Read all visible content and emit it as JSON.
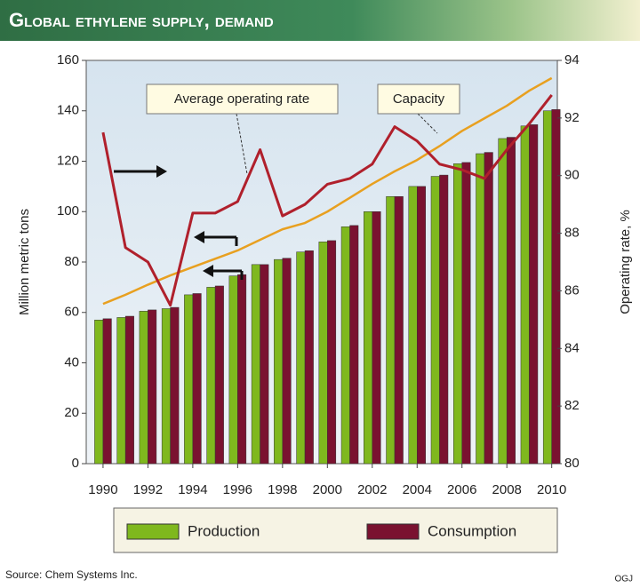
{
  "chart_data": {
    "type": "bar",
    "title": "Global ethylene supply, demand",
    "y_label": "Million metric tons",
    "y2_label": "Operating rate, %",
    "source": "Source: Chem Systems Inc.",
    "credit": "OGJ",
    "x": [
      1990,
      1991,
      1992,
      1993,
      1994,
      1995,
      1996,
      1997,
      1998,
      1999,
      2000,
      2001,
      2002,
      2003,
      2004,
      2005,
      2006,
      2007,
      2008,
      2009,
      2010
    ],
    "xlim": [
      1989.25,
      2010.25
    ],
    "xticks": [
      1990,
      1992,
      1994,
      1996,
      1998,
      2000,
      2002,
      2004,
      2006,
      2008,
      2010
    ],
    "ylim": [
      0,
      160
    ],
    "yticks": [
      0,
      20,
      40,
      60,
      80,
      100,
      120,
      140,
      160
    ],
    "y2lim": [
      80,
      94
    ],
    "y2ticks": [
      80,
      82,
      84,
      86,
      88,
      90,
      92,
      94
    ],
    "series": [
      {
        "name": "Production",
        "type": "bar",
        "color": "#7fb81e",
        "values": [
          57,
          58,
          60.5,
          61.5,
          67,
          70,
          74.5,
          79,
          81,
          84,
          88,
          94,
          100,
          106,
          110,
          114,
          119,
          123,
          129,
          134,
          140
        ]
      },
      {
        "name": "Consumption",
        "type": "bar",
        "color": "#7a1230",
        "values": [
          57.5,
          58.5,
          61,
          62,
          67.5,
          70.5,
          75,
          79,
          81.5,
          84.5,
          88.5,
          94.5,
          100,
          106,
          110,
          114.5,
          119.5,
          123.5,
          129.5,
          134.5,
          140.5
        ]
      },
      {
        "name": "Capacity",
        "type": "line",
        "color": "#e8a020",
        "values": [
          63.4,
          67,
          71,
          74.7,
          78,
          81.3,
          84.6,
          88.8,
          93,
          95.5,
          100,
          105.5,
          111,
          116,
          120.5,
          126,
          132,
          137,
          142,
          148,
          153
        ]
      },
      {
        "name": "Average operating rate",
        "type": "line",
        "axis": "y2",
        "color": "#b0202c",
        "values": [
          91.5,
          87.5,
          87,
          85.5,
          88.7,
          88.7,
          89.1,
          90.9,
          88.6,
          89,
          89.7,
          89.9,
          90.4,
          91.7,
          91.2,
          90.4,
          90.2,
          89.9,
          90.9,
          91.8,
          92.8
        ]
      }
    ]
  }
}
